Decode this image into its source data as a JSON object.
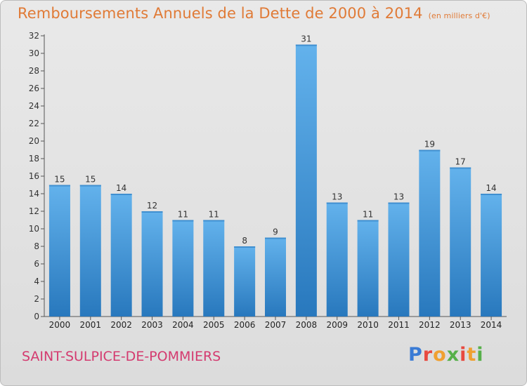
{
  "header": {
    "title": "Remboursements Annuels de la Dette de 2000 à 2014",
    "unit": "(en milliers d'€)"
  },
  "footer": {
    "commune": "SAINT-SULPICE-DE-POMMIERS",
    "logo_text": "Proxiti"
  },
  "colors": {
    "title": "#e07a36",
    "commune": "#d43a6f",
    "bar_top": "#63b2ec",
    "bar_bottom": "#2878bd",
    "background": "#e2e2e2"
  },
  "chart_data": {
    "type": "bar",
    "categories": [
      "2000",
      "2001",
      "2002",
      "2003",
      "2004",
      "2005",
      "2006",
      "2007",
      "2008",
      "2009",
      "2010",
      "2011",
      "2012",
      "2013",
      "2014"
    ],
    "values": [
      15,
      15,
      14,
      12,
      11,
      11,
      8,
      9,
      31,
      13,
      11,
      13,
      19,
      17,
      14
    ],
    "ylim": [
      0,
      32
    ],
    "yticks": [
      0,
      2,
      4,
      6,
      8,
      10,
      12,
      14,
      16,
      18,
      20,
      22,
      24,
      26,
      28,
      30,
      32
    ],
    "grid": false,
    "data_labels": true
  }
}
